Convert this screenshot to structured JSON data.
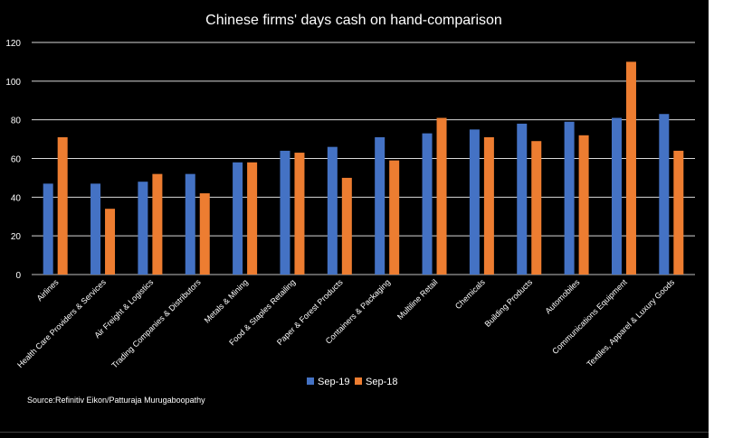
{
  "chart_data": {
    "type": "bar",
    "title": "Chinese firms' days cash on hand-comparison",
    "categories": [
      "Airlines",
      "Health Care Providers & Services",
      "Air Freight & Logistics",
      "Trading Companies & Distributors",
      "Metals & Mining",
      "Food & Staples Retailing",
      "Paper & Forest Products",
      "Containers & Packaging",
      "Multiline Retail",
      "Chemicals",
      "Building Products",
      "Automobiles",
      "Communications Equipment",
      "Textiles, Apparel & Luxury Goods"
    ],
    "series": [
      {
        "name": "Sep-19",
        "color": "#4472c4",
        "values": [
          47,
          47,
          48,
          52,
          58,
          64,
          66,
          71,
          73,
          75,
          78,
          79,
          81,
          83
        ]
      },
      {
        "name": "Sep-18",
        "color": "#ed7d31",
        "values": [
          71,
          34,
          52,
          42,
          58,
          63,
          50,
          59,
          81,
          71,
          69,
          72,
          110,
          64
        ]
      }
    ],
    "ylim": [
      0,
      120
    ],
    "yticks": [
      0,
      20,
      40,
      60,
      80,
      100,
      120
    ],
    "grid": true,
    "legend": "bottom-center",
    "xlabel": "",
    "ylabel": ""
  },
  "source": "Source:Refinitiv Eikon/Patturaja Murugaboopathy"
}
